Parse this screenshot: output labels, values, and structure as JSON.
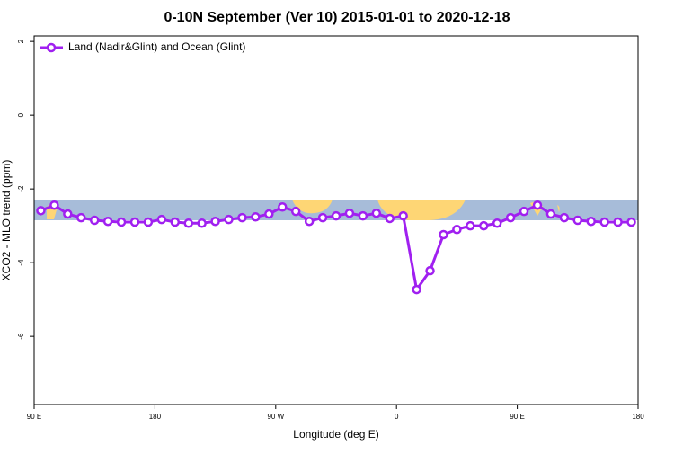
{
  "chart_data": {
    "type": "line",
    "title": "0-10N September (Ver 10)   2015-01-01 to 2020-12-18",
    "x_label": "Longitude (deg E)",
    "y_label": "XCO2 - MLO trend (ppm)",
    "x": [
      95,
      105,
      115,
      125,
      135,
      145,
      155,
      165,
      175,
      185,
      195,
      205,
      215,
      225,
      235,
      245,
      255,
      265,
      275,
      285,
      295,
      305,
      315,
      325,
      335,
      345,
      355,
      365,
      375,
      385,
      395,
      405,
      415,
      425,
      435,
      445,
      455,
      465,
      475,
      485,
      495,
      505,
      515,
      525,
      535
    ],
    "series": [
      {
        "name": "Land (Nadir&Glint) and Ocean (Glint)",
        "color": "#a020f0",
        "values": [
          -2.59,
          -2.44,
          -2.68,
          -2.78,
          -2.85,
          -2.88,
          -2.9,
          -2.9,
          -2.9,
          -2.83,
          -2.9,
          -2.93,
          -2.93,
          -2.88,
          -2.83,
          -2.78,
          -2.76,
          -2.68,
          -2.49,
          -2.61,
          -2.88,
          -2.78,
          -2.73,
          -2.66,
          -2.73,
          -2.66,
          -2.8,
          -2.73,
          -4.73,
          -4.22,
          -3.24,
          -3.1,
          -3.0,
          -3.0,
          -2.93,
          -2.78,
          -2.61,
          -2.44,
          -2.68,
          -2.78,
          -2.85,
          -2.88,
          -2.9,
          -2.9,
          -2.9
        ]
      }
    ],
    "xlim": [
      90,
      540
    ],
    "xticks": [
      {
        "value": 90,
        "label": "90 E"
      },
      {
        "value": 180,
        "label": "180"
      },
      {
        "value": 270,
        "label": "90 W"
      },
      {
        "value": 360,
        "label": "0"
      },
      {
        "value": 450,
        "label": "90 E"
      },
      {
        "value": 540,
        "label": "180"
      }
    ],
    "ylim": [
      -7.85,
      2.15
    ],
    "yticks": [
      -6,
      -4,
      -2,
      0,
      2
    ],
    "legend": "top-left"
  }
}
